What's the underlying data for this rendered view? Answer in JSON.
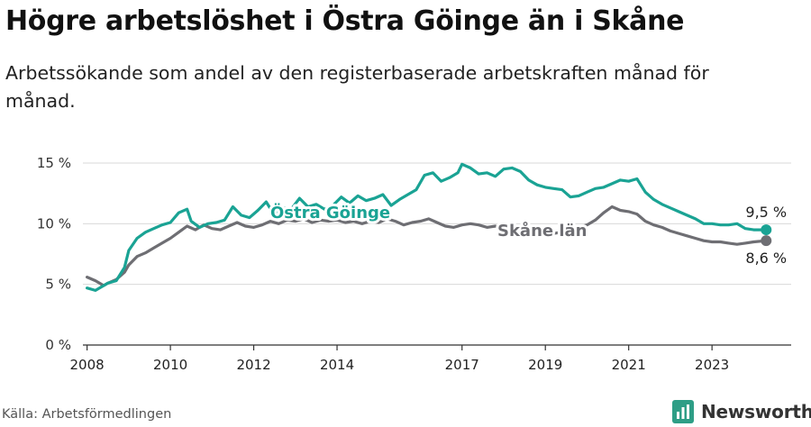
{
  "title": "Högre arbetslöshet i Östra Göinge än i Skåne",
  "subtitle": "Arbetssökande som andel av den registerbaserade arbetskraften månad för månad.",
  "source": "Källa: Arbetsförmedlingen",
  "brand": {
    "name": "Newsworthy",
    "icon": "bar-chart-logo-icon",
    "color": "#2e9e86"
  },
  "colors": {
    "ostra_goinge": "#1aa394",
    "skane": "#6e6e73",
    "grid": "#d9d9d9",
    "axis": "#333333"
  },
  "chart_data": {
    "type": "line",
    "ylim": [
      0,
      15
    ],
    "yticks": [
      0,
      5,
      10,
      15
    ],
    "ytick_labels": [
      "0 %",
      "5 %",
      "10 %",
      "15 %"
    ],
    "xlim": [
      2007.9,
      2024.9
    ],
    "xticks": [
      2008,
      2010,
      2012,
      2014,
      2017,
      2019,
      2021,
      2023
    ],
    "xtick_labels": [
      "2008",
      "2010",
      "2012",
      "2014",
      "2017",
      "2019",
      "2021",
      "2023"
    ],
    "series": [
      {
        "name": "Skåne län",
        "label": "Skåne län",
        "end_label": "8,6 %",
        "color": "#6e6e73",
        "points": [
          [
            2008.0,
            5.6
          ],
          [
            2008.2,
            5.3
          ],
          [
            2008.4,
            4.9
          ],
          [
            2008.5,
            5.1
          ],
          [
            2008.7,
            5.4
          ],
          [
            2008.9,
            6.0
          ],
          [
            2009.0,
            6.6
          ],
          [
            2009.2,
            7.3
          ],
          [
            2009.4,
            7.6
          ],
          [
            2009.6,
            8.0
          ],
          [
            2009.8,
            8.4
          ],
          [
            2010.0,
            8.8
          ],
          [
            2010.2,
            9.3
          ],
          [
            2010.4,
            9.8
          ],
          [
            2010.6,
            9.5
          ],
          [
            2010.8,
            9.9
          ],
          [
            2011.0,
            9.6
          ],
          [
            2011.2,
            9.5
          ],
          [
            2011.4,
            9.8
          ],
          [
            2011.6,
            10.1
          ],
          [
            2011.8,
            9.8
          ],
          [
            2012.0,
            9.7
          ],
          [
            2012.2,
            9.9
          ],
          [
            2012.4,
            10.2
          ],
          [
            2012.6,
            10.0
          ],
          [
            2012.8,
            10.3
          ],
          [
            2013.0,
            10.2
          ],
          [
            2013.2,
            10.4
          ],
          [
            2013.4,
            10.1
          ],
          [
            2013.6,
            10.3
          ],
          [
            2013.8,
            10.2
          ],
          [
            2014.0,
            10.3
          ],
          [
            2014.2,
            10.1
          ],
          [
            2014.4,
            10.2
          ],
          [
            2014.6,
            10.0
          ],
          [
            2014.8,
            10.2
          ],
          [
            2015.0,
            10.1
          ],
          [
            2015.2,
            10.4
          ],
          [
            2015.4,
            10.2
          ],
          [
            2015.6,
            9.9
          ],
          [
            2015.8,
            10.1
          ],
          [
            2016.0,
            10.2
          ],
          [
            2016.2,
            10.4
          ],
          [
            2016.4,
            10.1
          ],
          [
            2016.6,
            9.8
          ],
          [
            2016.8,
            9.7
          ],
          [
            2017.0,
            9.9
          ],
          [
            2017.2,
            10.0
          ],
          [
            2017.4,
            9.9
          ],
          [
            2017.6,
            9.7
          ],
          [
            2017.8,
            9.8
          ],
          [
            2018.0,
            9.6
          ],
          [
            2018.2,
            9.5
          ],
          [
            2018.4,
            9.4
          ],
          [
            2018.6,
            9.3
          ],
          [
            2018.8,
            9.2
          ],
          [
            2019.0,
            9.1
          ],
          [
            2019.2,
            9.2
          ],
          [
            2019.4,
            9.3
          ],
          [
            2019.6,
            9.4
          ],
          [
            2019.8,
            9.7
          ],
          [
            2020.0,
            9.9
          ],
          [
            2020.2,
            10.3
          ],
          [
            2020.4,
            10.9
          ],
          [
            2020.6,
            11.4
          ],
          [
            2020.8,
            11.1
          ],
          [
            2021.0,
            11.0
          ],
          [
            2021.2,
            10.8
          ],
          [
            2021.4,
            10.2
          ],
          [
            2021.6,
            9.9
          ],
          [
            2021.8,
            9.7
          ],
          [
            2022.0,
            9.4
          ],
          [
            2022.2,
            9.2
          ],
          [
            2022.4,
            9.0
          ],
          [
            2022.6,
            8.8
          ],
          [
            2022.8,
            8.6
          ],
          [
            2023.0,
            8.5
          ],
          [
            2023.2,
            8.5
          ],
          [
            2023.4,
            8.4
          ],
          [
            2023.6,
            8.3
          ],
          [
            2023.8,
            8.4
          ],
          [
            2024.0,
            8.5
          ],
          [
            2024.3,
            8.6
          ]
        ]
      },
      {
        "name": "Östra Göinge",
        "label": "Östra Göinge",
        "end_label": "9,5 %",
        "color": "#1aa394",
        "points": [
          [
            2008.0,
            4.7
          ],
          [
            2008.2,
            4.5
          ],
          [
            2008.4,
            4.9
          ],
          [
            2008.5,
            5.1
          ],
          [
            2008.7,
            5.3
          ],
          [
            2008.9,
            6.4
          ],
          [
            2009.0,
            7.8
          ],
          [
            2009.2,
            8.8
          ],
          [
            2009.4,
            9.3
          ],
          [
            2009.6,
            9.6
          ],
          [
            2009.8,
            9.9
          ],
          [
            2010.0,
            10.1
          ],
          [
            2010.2,
            10.9
          ],
          [
            2010.4,
            11.2
          ],
          [
            2010.5,
            10.2
          ],
          [
            2010.7,
            9.7
          ],
          [
            2010.9,
            10.0
          ],
          [
            2011.1,
            10.1
          ],
          [
            2011.3,
            10.3
          ],
          [
            2011.5,
            11.4
          ],
          [
            2011.7,
            10.7
          ],
          [
            2011.9,
            10.5
          ],
          [
            2012.1,
            11.1
          ],
          [
            2012.3,
            11.8
          ],
          [
            2012.5,
            10.7
          ],
          [
            2012.7,
            11.3
          ],
          [
            2012.9,
            11.2
          ],
          [
            2013.1,
            12.1
          ],
          [
            2013.3,
            11.4
          ],
          [
            2013.5,
            11.6
          ],
          [
            2013.7,
            11.2
          ],
          [
            2013.9,
            11.5
          ],
          [
            2014.1,
            12.2
          ],
          [
            2014.3,
            11.7
          ],
          [
            2014.5,
            12.3
          ],
          [
            2014.7,
            11.9
          ],
          [
            2014.9,
            12.1
          ],
          [
            2015.1,
            12.4
          ],
          [
            2015.3,
            11.5
          ],
          [
            2015.5,
            12.0
          ],
          [
            2015.7,
            12.4
          ],
          [
            2015.9,
            12.8
          ],
          [
            2016.1,
            14.0
          ],
          [
            2016.3,
            14.2
          ],
          [
            2016.5,
            13.5
          ],
          [
            2016.7,
            13.8
          ],
          [
            2016.9,
            14.2
          ],
          [
            2017.0,
            14.9
          ],
          [
            2017.2,
            14.6
          ],
          [
            2017.4,
            14.1
          ],
          [
            2017.6,
            14.2
          ],
          [
            2017.8,
            13.9
          ],
          [
            2018.0,
            14.5
          ],
          [
            2018.2,
            14.6
          ],
          [
            2018.4,
            14.3
          ],
          [
            2018.6,
            13.6
          ],
          [
            2018.8,
            13.2
          ],
          [
            2019.0,
            13.0
          ],
          [
            2019.2,
            12.9
          ],
          [
            2019.4,
            12.8
          ],
          [
            2019.6,
            12.2
          ],
          [
            2019.8,
            12.3
          ],
          [
            2020.0,
            12.6
          ],
          [
            2020.2,
            12.9
          ],
          [
            2020.4,
            13.0
          ],
          [
            2020.6,
            13.3
          ],
          [
            2020.8,
            13.6
          ],
          [
            2021.0,
            13.5
          ],
          [
            2021.2,
            13.7
          ],
          [
            2021.4,
            12.6
          ],
          [
            2021.6,
            12.0
          ],
          [
            2021.8,
            11.6
          ],
          [
            2022.0,
            11.3
          ],
          [
            2022.2,
            11.0
          ],
          [
            2022.4,
            10.7
          ],
          [
            2022.6,
            10.4
          ],
          [
            2022.8,
            10.0
          ],
          [
            2023.0,
            10.0
          ],
          [
            2023.2,
            9.9
          ],
          [
            2023.4,
            9.9
          ],
          [
            2023.6,
            10.0
          ],
          [
            2023.8,
            9.6
          ],
          [
            2024.0,
            9.5
          ],
          [
            2024.3,
            9.5
          ]
        ]
      }
    ]
  }
}
